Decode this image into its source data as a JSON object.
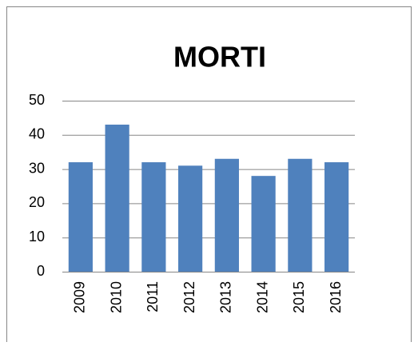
{
  "chart_data": {
    "type": "bar",
    "title": "MORTI",
    "categories": [
      "2009",
      "2010",
      "2011",
      "2012",
      "2013",
      "2014",
      "2015",
      "2016"
    ],
    "values": [
      32,
      43,
      32,
      31,
      33,
      28,
      33,
      32
    ],
    "color": "#4f81bd",
    "ylim": [
      0,
      50
    ],
    "yticks": [
      0,
      10,
      20,
      30,
      40,
      50
    ],
    "grid": true
  }
}
